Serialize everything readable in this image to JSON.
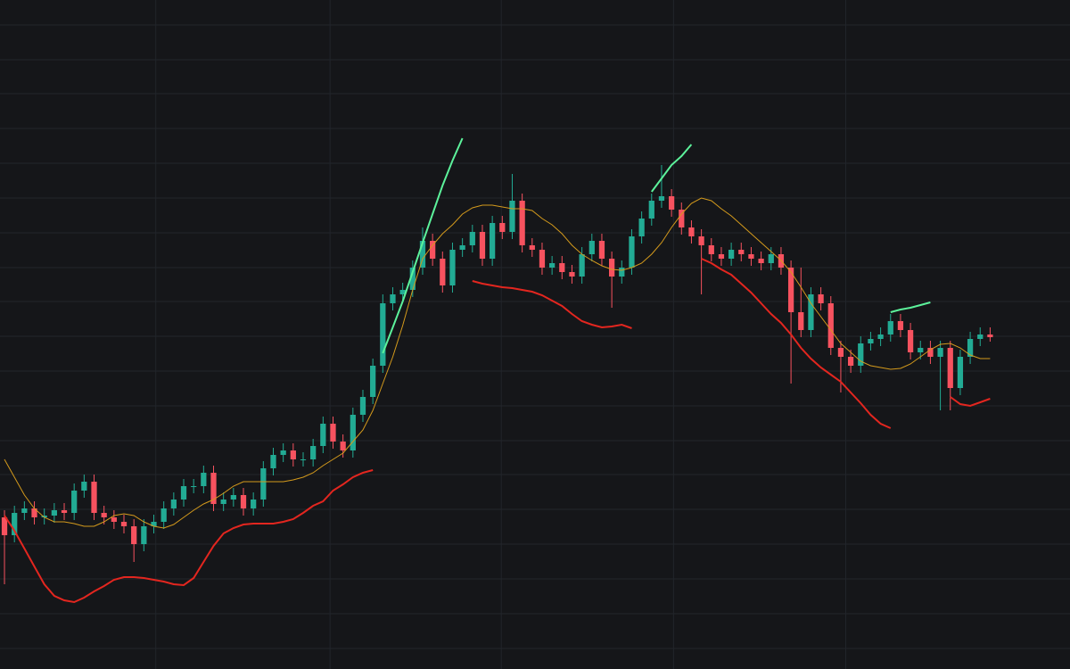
{
  "chart_data": {
    "type": "candlestick",
    "up_color": "#22ab94",
    "down_color": "#f7525f",
    "grid": true,
    "xlim": [
      -0.45,
      99.5
    ],
    "xticks": [
      15.2,
      32.7,
      49.9,
      67.2,
      84.5
    ],
    "ylim": [
      0,
      750
    ],
    "yticks": [
      23,
      62,
      101,
      140,
      179,
      218,
      256,
      295,
      334,
      373,
      412,
      450,
      489,
      528,
      567,
      606,
      645,
      683,
      722
    ],
    "open": [
      170,
      150,
      175,
      180,
      170,
      172,
      178,
      175,
      200,
      210,
      175,
      170,
      165,
      160,
      140,
      160,
      165,
      180,
      190,
      205,
      205,
      220,
      185,
      190,
      195,
      180,
      190,
      225,
      240,
      245,
      235,
      235,
      250,
      275,
      255,
      245,
      285,
      305,
      340,
      410,
      420,
      425,
      450,
      480,
      460,
      430,
      470,
      475,
      490,
      460,
      500,
      490,
      525,
      475,
      470,
      450,
      455,
      445,
      440,
      465,
      480,
      460,
      440,
      450,
      485,
      505,
      525,
      530,
      515,
      495,
      485,
      475,
      465,
      460,
      470,
      465,
      460,
      455,
      465,
      450,
      400,
      380,
      420,
      410,
      360,
      350,
      340,
      365,
      370,
      375,
      390,
      380,
      355,
      360,
      350,
      360,
      315,
      350,
      370,
      375
    ],
    "high": [
      178,
      183,
      188,
      188,
      180,
      186,
      186,
      208,
      218,
      218,
      183,
      178,
      173,
      168,
      168,
      173,
      188,
      198,
      213,
      213,
      228,
      228,
      198,
      203,
      203,
      198,
      233,
      248,
      253,
      253,
      243,
      258,
      283,
      283,
      263,
      293,
      313,
      348,
      420,
      428,
      433,
      458,
      495,
      488,
      468,
      478,
      483,
      498,
      498,
      508,
      508,
      555,
      533,
      483,
      478,
      463,
      463,
      453,
      473,
      488,
      488,
      468,
      458,
      493,
      513,
      533,
      565,
      538,
      523,
      503,
      493,
      483,
      473,
      478,
      478,
      473,
      468,
      473,
      473,
      458,
      450,
      428,
      428,
      418,
      368,
      358,
      373,
      378,
      383,
      398,
      398,
      388,
      368,
      368,
      368,
      368,
      358,
      378,
      383,
      383
    ],
    "low": [
      95,
      142,
      167,
      162,
      162,
      164,
      167,
      167,
      192,
      167,
      162,
      157,
      152,
      120,
      132,
      152,
      157,
      172,
      182,
      197,
      197,
      177,
      177,
      182,
      172,
      172,
      182,
      217,
      232,
      227,
      227,
      227,
      242,
      247,
      237,
      237,
      277,
      297,
      332,
      402,
      412,
      417,
      442,
      452,
      422,
      422,
      462,
      467,
      452,
      452,
      482,
      482,
      467,
      462,
      442,
      442,
      437,
      432,
      432,
      457,
      452,
      405,
      432,
      442,
      477,
      497,
      517,
      507,
      487,
      477,
      420,
      457,
      452,
      452,
      457,
      452,
      447,
      447,
      442,
      320,
      372,
      372,
      402,
      352,
      310,
      332,
      332,
      357,
      362,
      367,
      372,
      347,
      347,
      342,
      290,
      290,
      307,
      342,
      362,
      367
    ],
    "close": [
      150,
      175,
      180,
      170,
      172,
      178,
      175,
      200,
      210,
      175,
      170,
      165,
      160,
      140,
      160,
      165,
      180,
      190,
      205,
      205,
      220,
      185,
      190,
      195,
      180,
      190,
      225,
      240,
      245,
      235,
      235,
      250,
      275,
      255,
      245,
      285,
      305,
      340,
      410,
      420,
      425,
      450,
      480,
      460,
      430,
      470,
      475,
      490,
      460,
      500,
      490,
      525,
      475,
      470,
      450,
      455,
      445,
      440,
      465,
      480,
      460,
      440,
      450,
      485,
      505,
      525,
      530,
      515,
      495,
      485,
      475,
      465,
      460,
      470,
      465,
      460,
      455,
      465,
      450,
      400,
      380,
      420,
      410,
      360,
      350,
      340,
      365,
      370,
      375,
      390,
      380,
      355,
      360,
      350,
      360,
      315,
      350,
      370,
      375,
      372
    ],
    "lines": [
      {
        "color": "#d49a1c",
        "values": [
          235,
          215,
          195,
          180,
          170,
          165,
          165,
          163,
          160,
          160,
          165,
          172,
          174,
          172,
          165,
          160,
          158,
          162,
          170,
          178,
          185,
          190,
          197,
          205,
          210,
          210,
          210,
          210,
          210,
          212,
          215,
          220,
          228,
          235,
          242,
          255,
          268,
          290,
          320,
          350,
          385,
          425,
          460,
          475,
          488,
          498,
          510,
          517,
          520,
          520,
          518,
          516,
          516,
          514,
          505,
          498,
          488,
          475,
          465,
          458,
          452,
          448,
          447,
          450,
          455,
          465,
          478,
          495,
          510,
          522,
          528,
          525,
          516,
          508,
          498,
          488,
          478,
          468,
          458,
          445,
          428,
          410,
          395,
          380,
          365,
          355,
          345,
          340,
          338,
          336,
          337,
          342,
          350,
          358,
          364,
          365,
          360,
          352,
          348,
          348
        ]
      },
      {
        "color": "#e3261f",
        "values": [
          172,
          155,
          135,
          115,
          95,
          82,
          77,
          75,
          80,
          87,
          93,
          100,
          103,
          103,
          102,
          100,
          98,
          95,
          94,
          102,
          120,
          138,
          152,
          158,
          162,
          163,
          163,
          163,
          165,
          168,
          175,
          183,
          188,
          200,
          207,
          215,
          220,
          223,
          null,
          null,
          null,
          null,
          null,
          null,
          null,
          null,
          null,
          435,
          432,
          430,
          428,
          427,
          425,
          423,
          419,
          413,
          407,
          398,
          390,
          386,
          383,
          384,
          386,
          382,
          null,
          null,
          null,
          null,
          null,
          null,
          460,
          455,
          448,
          442,
          432,
          422,
          410,
          398,
          388,
          375,
          360,
          348,
          338,
          330,
          322,
          310,
          298,
          285,
          275,
          270,
          null,
          null,
          null,
          null,
          null,
          305,
          297,
          295,
          299,
          303
        ]
      },
      {
        "color": "#5cf29b",
        "values": [
          null,
          null,
          null,
          null,
          null,
          null,
          null,
          null,
          null,
          null,
          null,
          null,
          null,
          null,
          null,
          null,
          null,
          null,
          null,
          null,
          null,
          null,
          null,
          null,
          null,
          null,
          null,
          null,
          null,
          null,
          null,
          null,
          null,
          null,
          null,
          null,
          null,
          null,
          354,
          383,
          412,
          445,
          478,
          510,
          542,
          570,
          595,
          null,
          null,
          null,
          null,
          null,
          null,
          null,
          null,
          null,
          null,
          null,
          null,
          null,
          null,
          null,
          null,
          null,
          null,
          535,
          550,
          565,
          575,
          588,
          null,
          null,
          null,
          null,
          null,
          null,
          null,
          null,
          null,
          null,
          null,
          null,
          null,
          null,
          null,
          null,
          null,
          null,
          null,
          400,
          403,
          405,
          408,
          411,
          null,
          null,
          null,
          null,
          null,
          null
        ]
      }
    ]
  }
}
